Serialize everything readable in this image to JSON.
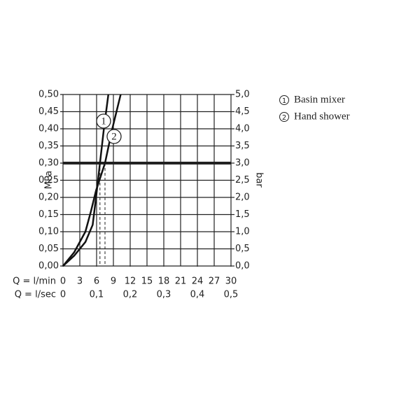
{
  "chart_data": {
    "type": "line",
    "y_label": "MPa",
    "y2_label": "bar",
    "x_label": "Q = l/min",
    "x2_label": "Q = l/sec",
    "xlim": [
      0,
      30
    ],
    "xticks": [
      0,
      3,
      6,
      9,
      12,
      15,
      18,
      21,
      24,
      27,
      30
    ],
    "x2lim": [
      0,
      0.5
    ],
    "x2ticks": [
      0,
      {
        "value": 0.1,
        "label": "0,1"
      },
      {
        "value": 0.2,
        "label": "0,2"
      },
      {
        "value": 0.3,
        "label": "0,3"
      },
      {
        "value": 0.4,
        "label": "0,4"
      },
      {
        "value": 0.5,
        "label": "0,5"
      }
    ],
    "ylim": [
      0,
      0.5
    ],
    "yticks": [
      {
        "value": 0,
        "label": "0,00"
      },
      {
        "value": 0.05,
        "label": "0,05"
      },
      {
        "value": 0.1,
        "label": "0,10"
      },
      {
        "value": 0.15,
        "label": "0,15"
      },
      {
        "value": 0.2,
        "label": "0,20"
      },
      {
        "value": 0.25,
        "label": "0,25"
      },
      {
        "value": 0.3,
        "label": "0,30"
      },
      {
        "value": 0.35,
        "label": "0,35"
      },
      {
        "value": 0.4,
        "label": "0,40"
      },
      {
        "value": 0.45,
        "label": "0,45"
      },
      {
        "value": 0.5,
        "label": "0,50"
      }
    ],
    "y2lim": [
      0,
      5
    ],
    "y2ticks": [
      {
        "value": 0,
        "label": "0,0"
      },
      {
        "value": 0.5,
        "label": "0,5"
      },
      {
        "value": 1,
        "label": "1,0"
      },
      {
        "value": 1.5,
        "label": "1,5"
      },
      {
        "value": 2,
        "label": "2,0"
      },
      {
        "value": 2.5,
        "label": "2,5"
      },
      {
        "value": 3,
        "label": "3,0"
      },
      {
        "value": 3.5,
        "label": "3,5"
      },
      {
        "value": 4,
        "label": "4,0"
      },
      {
        "value": 4.5,
        "label": "4,5"
      },
      {
        "value": 5,
        "label": "5,0"
      }
    ],
    "grid": true,
    "reference_line": 0.3,
    "series": [
      {
        "name": "Basin mixer",
        "label": "1",
        "color": "#111111",
        "x": [
          0,
          2,
          4,
          5.3,
          5.9,
          6.6,
          7.3,
          8.1
        ],
        "values": [
          0,
          0.03,
          0.07,
          0.12,
          0.2,
          0.3,
          0.4,
          0.5
        ]
      },
      {
        "name": "Hand shower",
        "label": "2",
        "color": "#111111",
        "x": [
          0,
          2,
          4,
          5,
          5.9,
          7.5,
          8.8,
          10.3
        ],
        "values": [
          0,
          0.04,
          0.1,
          0.16,
          0.22,
          0.3,
          0.4,
          0.5
        ]
      }
    ]
  }
}
